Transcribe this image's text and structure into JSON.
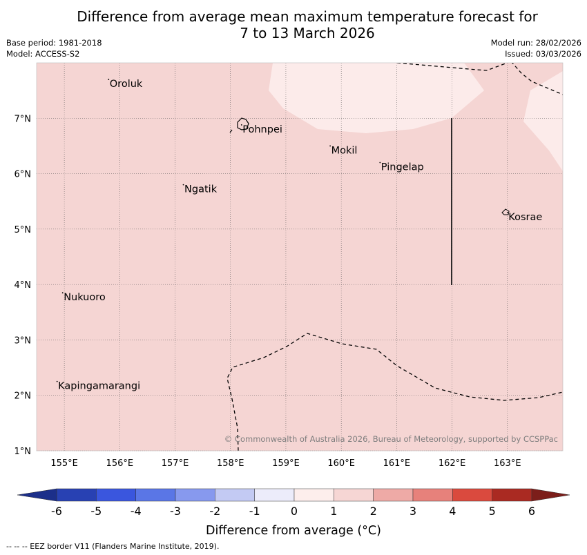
{
  "title": {
    "line1": "Difference from average mean maximum temperature forecast for",
    "line2": "7 to 13 March 2026"
  },
  "meta": {
    "base_period": "Base period: 1981-2018",
    "model": "Model: ACCESS-S2",
    "model_run": "Model run: 28/02/2026",
    "issued": "Issued: 03/03/2026"
  },
  "map": {
    "lon_range": [
      154.5,
      164.0
    ],
    "lat_range": [
      1.0,
      8.0
    ],
    "x_ticks": [
      {
        "value": 155,
        "label": "155°E"
      },
      {
        "value": 156,
        "label": "156°E"
      },
      {
        "value": 157,
        "label": "157°E"
      },
      {
        "value": 158,
        "label": "158°E"
      },
      {
        "value": 159,
        "label": "159°E"
      },
      {
        "value": 160,
        "label": "160°E"
      },
      {
        "value": 161,
        "label": "161°E"
      },
      {
        "value": 162,
        "label": "162°E"
      },
      {
        "value": 163,
        "label": "163°E"
      }
    ],
    "y_ticks": [
      {
        "value": 1,
        "label": "1°N"
      },
      {
        "value": 2,
        "label": "2°N"
      },
      {
        "value": 3,
        "label": "3°N"
      },
      {
        "value": 4,
        "label": "4°N"
      },
      {
        "value": 5,
        "label": "5°N"
      },
      {
        "value": 6,
        "label": "6°N"
      },
      {
        "value": 7,
        "label": "7°N"
      }
    ],
    "background_fill_color": "#f5d5d3",
    "lighter_fill_color": "#fcebea",
    "places": [
      {
        "name": "Oroluk",
        "lon": 155.8,
        "lat": 7.7
      },
      {
        "name": "Pohnpei",
        "lon": 158.2,
        "lat": 6.88
      },
      {
        "name": "Mokil",
        "lon": 159.8,
        "lat": 6.5
      },
      {
        "name": "Pingelap",
        "lon": 160.7,
        "lat": 6.2
      },
      {
        "name": "Ngatik",
        "lon": 157.15,
        "lat": 5.8
      },
      {
        "name": "Kosrae",
        "lon": 163.0,
        "lat": 5.3
      },
      {
        "name": "Nukuoro",
        "lon": 154.97,
        "lat": 3.85
      },
      {
        "name": "Kapingamarangi",
        "lon": 154.87,
        "lat": 2.25
      }
    ],
    "copyright": "© Commonwealth of Australia 2026, Bureau of Meteorology, supported by CCSPPac"
  },
  "colorbar": {
    "tick_labels": [
      "-6",
      "-5",
      "-4",
      "-3",
      "-2",
      "-1",
      "0",
      "1",
      "2",
      "3",
      "4",
      "5",
      "6"
    ],
    "colors": [
      "#2841b3",
      "#3a56de",
      "#5a76e6",
      "#8799ee",
      "#c3caf3",
      "#ececfa",
      "#fdeeec",
      "#f6d6d4",
      "#eeaaa6",
      "#e7817b",
      "#da4a3e",
      "#aa2a22"
    ],
    "under_color": "#1c2f8a",
    "over_color": "#7c1e1a",
    "label": "Difference from average (°C)"
  },
  "footnote": "--  --  -- EEZ border V11 (Flanders Marine Institute, 2019)."
}
